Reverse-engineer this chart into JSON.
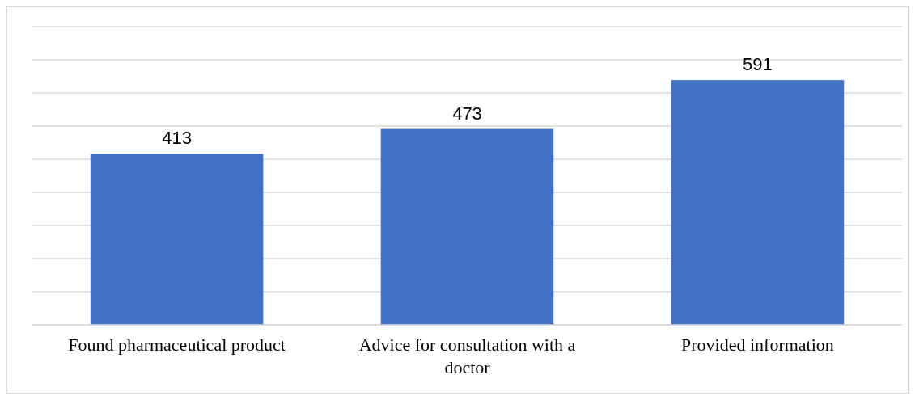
{
  "chart_data": {
    "type": "bar",
    "categories": [
      "Found pharmaceutical product",
      "Advice for consultation with a doctor",
      "Provided information"
    ],
    "values": [
      413,
      473,
      591
    ],
    "color": "#4272c6",
    "data_labels": true,
    "grid": "y",
    "ylim": [
      0,
      720
    ],
    "yticks": [
      {
        "value": 0,
        "label": null
      },
      {
        "value": 80,
        "label": null
      },
      {
        "value": 160,
        "label": null
      },
      {
        "value": 240,
        "label": null
      },
      {
        "value": 320,
        "label": null
      },
      {
        "value": 400,
        "label": null
      },
      {
        "value": 480,
        "label": null
      },
      {
        "value": 560,
        "label": null
      },
      {
        "value": 640,
        "label": null
      },
      {
        "value": 720,
        "label": null
      }
    ],
    "tick_labels": "x"
  }
}
